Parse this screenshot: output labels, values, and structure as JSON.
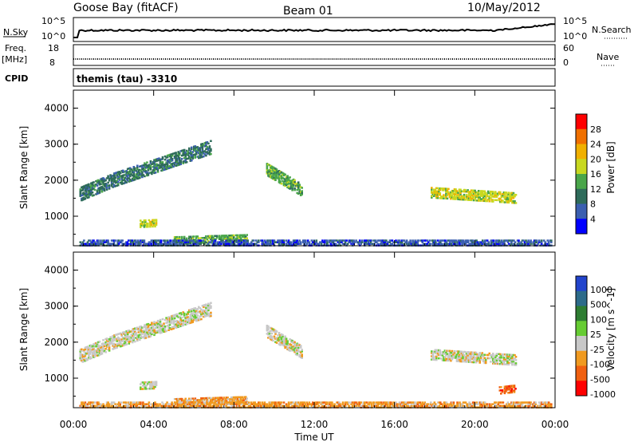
{
  "header": {
    "station": "Goose Bay (fitACF)",
    "beam": "Beam 01",
    "date": "10/May/2012"
  },
  "top_panels": {
    "nsky_label": "N.Sky",
    "nsky_ticks": [
      "10^5",
      "10^0"
    ],
    "nsearch_label": "N.Search",
    "nsearch_ticks": [
      "10^5",
      "10^0"
    ],
    "freq_label": "Freq.",
    "freq_unit": "[MHz]",
    "freq_ticks": [
      "18",
      "8"
    ],
    "nave_label": "Nave",
    "nave_ticks": [
      "60",
      "0"
    ],
    "cpid_label": "CPID",
    "cpid_text": "themis (tau) -3310"
  },
  "colors": {
    "power_scale": [
      "#0000ff",
      "#3b5fb0",
      "#2e6b5a",
      "#4aa64a",
      "#c8d820",
      "#f0b000",
      "#f07000",
      "#ff0000"
    ],
    "velocity_scale": [
      "#2244cc",
      "#2d6b8a",
      "#2e7d32",
      "#66cc33",
      "#c8c8c8",
      "#f09a20",
      "#f06010",
      "#ff0000"
    ],
    "ground_scatter": "#c8c8c8"
  },
  "chart_data": [
    {
      "type": "heatmap",
      "name": "power",
      "ylabel": "Slant Range [km]",
      "xlabel": "",
      "ylim": [
        180,
        4500
      ],
      "yticks": [
        "1000",
        "2000",
        "3000",
        "4000"
      ],
      "colorbar_label": "Power [dB]",
      "colorbar_ticks": [
        "4",
        "8",
        "12",
        "16",
        "20",
        "24",
        "28"
      ],
      "regions": [
        {
          "t": [
            0.3,
            2.0
          ],
          "r0": [
            1600,
            2000
          ],
          "width": 380,
          "level": 2
        },
        {
          "t": [
            2.0,
            6.8
          ],
          "r0": [
            2000,
            2900
          ],
          "width": 380,
          "level": 2
        },
        {
          "t": [
            3.3,
            4.1
          ],
          "r0": [
            780,
            800
          ],
          "width": 200,
          "level": 4
        },
        {
          "t": [
            5.0,
            8.6
          ],
          "r0": [
            320,
            380
          ],
          "width": 200,
          "level": 3
        },
        {
          "t": [
            9.6,
            11.4
          ],
          "r0": [
            2300,
            1700
          ],
          "width": 350,
          "level": 3
        },
        {
          "t": [
            17.8,
            22.0
          ],
          "r0": [
            1650,
            1500
          ],
          "width": 300,
          "level": 4
        },
        {
          "t": [
            0.3,
            23.8
          ],
          "r0": [
            240,
            240
          ],
          "width": 140,
          "level": 1
        }
      ]
    },
    {
      "type": "heatmap",
      "name": "velocity",
      "ylabel": "Slant Range [km]",
      "xlabel": "Time UT",
      "ylim": [
        180,
        4500
      ],
      "xlim": [
        "00:00",
        "24:00"
      ],
      "xticks": [
        "00:00",
        "04:00",
        "08:00",
        "12:00",
        "16:00",
        "20:00",
        "00:00"
      ],
      "yticks": [
        "1000",
        "2000",
        "3000",
        "4000"
      ],
      "colorbar_label": "Velocity [m s^-1]",
      "colorbar_ticks": [
        "1000",
        "500",
        "100",
        "25",
        "-25",
        "-100",
        "-500",
        "-1000"
      ],
      "regions": [
        {
          "t": [
            0.3,
            2.0
          ],
          "r0": [
            1600,
            2000
          ],
          "width": 380,
          "level": 4
        },
        {
          "t": [
            2.0,
            6.8
          ],
          "r0": [
            2000,
            2900
          ],
          "width": 380,
          "level": 4
        },
        {
          "t": [
            3.3,
            4.1
          ],
          "r0": [
            780,
            800
          ],
          "width": 200,
          "level": 4
        },
        {
          "t": [
            5.0,
            8.6
          ],
          "r0": [
            320,
            380
          ],
          "width": 200,
          "level": 5
        },
        {
          "t": [
            9.6,
            11.4
          ],
          "r0": [
            2300,
            1700
          ],
          "width": 350,
          "level": 4
        },
        {
          "t": [
            17.8,
            22.0
          ],
          "r0": [
            1650,
            1500
          ],
          "width": 300,
          "level": 4
        },
        {
          "t": [
            21.2,
            22.0
          ],
          "r0": [
            650,
            700
          ],
          "width": 200,
          "level": 6
        },
        {
          "t": [
            0.3,
            23.8
          ],
          "r0": [
            240,
            240
          ],
          "width": 140,
          "level": 5
        }
      ]
    }
  ]
}
